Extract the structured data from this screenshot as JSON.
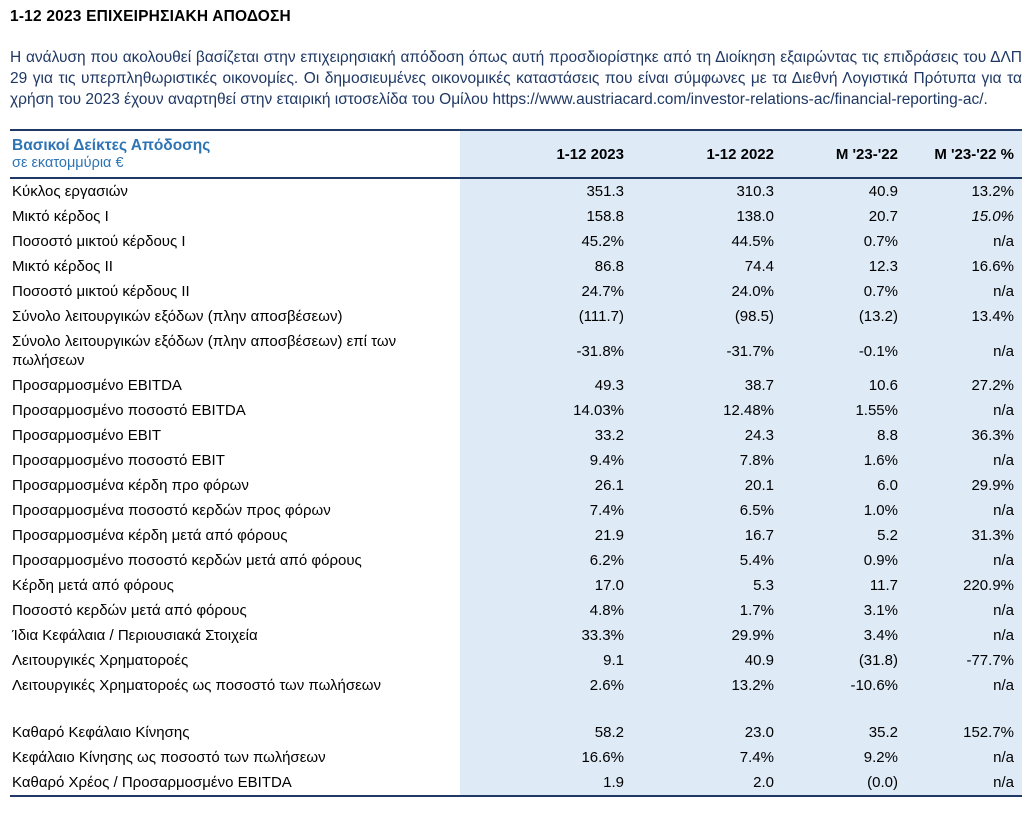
{
  "page": {
    "title": "1-12 2023 ΕΠΙΧΕΙΡΗΣΙΑΚΗ ΑΠΟΔΟΣΗ",
    "intro_text": "Η ανάλυση που ακολουθεί βασίζεται στην επιχειρησιακή απόδοση όπως αυτή προσδιορίστηκε από τη Διοίκηση εξαιρώντας τις επιδράσεις του ΔΛΠ 29 για τις υπερπληθωριστικές οικονομίες. Οι δημοσιευμένες οικονομικές καταστάσεις που είναι σύμφωνες με τα Διεθνή Λογιστικά Πρότυπα για τα χρήση του 2023 έχουν αναρτηθεί στην εταιρική ιστοσελίδα του Ομίλου ",
    "link_text": "https://www.austriacard.com/investor-relations-ac/financial-reporting-ac/",
    "after_link": "."
  },
  "colors": {
    "accent_blue": "#2E74B5",
    "body_navy": "#1F3864",
    "table_shading": "#DEEAF6",
    "table_border": "#1F3864"
  },
  "table": {
    "title": "Βασικοί Δείκτες Απόδοσης",
    "subtitle": "σε εκατομμύρια €",
    "columns": [
      "1-12 2023",
      "1-12 2022",
      "Μ '23-'22",
      "Μ '23-'22 %"
    ],
    "rows": [
      {
        "label": "Κύκλος εργασιών",
        "values": [
          "351.3",
          "310.3",
          "40.9",
          "13.2%"
        ]
      },
      {
        "label": "Μικτό κέρδος Ι",
        "values": [
          "158.8",
          "138.0",
          "20.7",
          "15.0%"
        ],
        "italics": [
          false,
          false,
          false,
          true
        ]
      },
      {
        "label": "Ποσοστό μικτού κέρδους Ι",
        "values": [
          "45.2%",
          "44.5%",
          "0.7%",
          "n/a"
        ]
      },
      {
        "label": "Μικτό κέρδος ΙΙ",
        "values": [
          "86.8",
          "74.4",
          "12.3",
          "16.6%"
        ]
      },
      {
        "label": "Ποσοστό μικτού κέρδους ΙΙ",
        "values": [
          "24.7%",
          "24.0%",
          "0.7%",
          "n/a"
        ]
      },
      {
        "label": "Σύνολο λειτουργικών εξόδων (πλην αποσβέσεων)",
        "values": [
          "(111.7)",
          "(98.5)",
          "(13.2)",
          "13.4%"
        ]
      },
      {
        "label": "Σύνολο λειτουργικών εξόδων (πλην αποσβέσεων) επί των πωλήσεων",
        "values": [
          "-31.8%",
          "-31.7%",
          "-0.1%",
          "n/a"
        ]
      },
      {
        "label": "Προσαρμοσμένο EBITDA",
        "values": [
          "49.3",
          "38.7",
          "10.6",
          "27.2%"
        ]
      },
      {
        "label": "Προσαρμοσμένο ποσοστό EBITDA",
        "values": [
          "14.03%",
          "12.48%",
          "1.55%",
          "n/a"
        ]
      },
      {
        "label": "Προσαρμοσμένο EBIT",
        "values": [
          "33.2",
          "24.3",
          "8.8",
          "36.3%"
        ]
      },
      {
        "label": "Προσαρμοσμένο ποσοστό EBIT",
        "values": [
          "9.4%",
          "7.8%",
          "1.6%",
          "n/a"
        ]
      },
      {
        "label": "Προσαρμοσμένα κέρδη προ φόρων",
        "values": [
          "26.1",
          "20.1",
          "6.0",
          "29.9%"
        ]
      },
      {
        "label": "Προσαρμοσμένα ποσοστό κερδών προς φόρων",
        "values": [
          "7.4%",
          "6.5%",
          "1.0%",
          "n/a"
        ]
      },
      {
        "label": "Προσαρμοσμένα κέρδη μετά από φόρους",
        "values": [
          "21.9",
          "16.7",
          "5.2",
          "31.3%"
        ]
      },
      {
        "label": "Προσαρμοσμένο ποσοστό κερδών μετά από φόρους",
        "values": [
          "6.2%",
          "5.4%",
          "0.9%",
          "n/a"
        ]
      },
      {
        "label": "Κέρδη μετά από φόρους",
        "values": [
          "17.0",
          "5.3",
          "11.7",
          "220.9%"
        ]
      },
      {
        "label": "Ποσοστό κερδών μετά από φόρους",
        "values": [
          "4.8%",
          "1.7%",
          "3.1%",
          "n/a"
        ]
      },
      {
        "label": "Ίδια Κεφάλαια / Περιουσιακά Στοιχεία",
        "values": [
          "33.3%",
          "29.9%",
          "3.4%",
          "n/a"
        ]
      },
      {
        "label": "Λειτουργικές Χρηματοροές",
        "values": [
          "9.1",
          "40.9",
          "(31.8)",
          "-77.7%"
        ]
      },
      {
        "label": "Λειτουργικές Χρηματοροές ως ποσοστό των πωλήσεων",
        "values": [
          "2.6%",
          "13.2%",
          "-10.6%",
          "n/a"
        ]
      },
      {
        "label": "",
        "values": [
          "",
          "",
          "",
          ""
        ]
      },
      {
        "label": "Καθαρό Κεφάλαιο Κίνησης",
        "values": [
          "58.2",
          "23.0",
          "35.2",
          "152.7%"
        ]
      },
      {
        "label": "Κεφάλαιο Κίνησης ως ποσοστό των πωλήσεων",
        "values": [
          "16.6%",
          "7.4%",
          "9.2%",
          "n/a"
        ]
      },
      {
        "label": "Καθαρό Χρέος / Προσαρμοσμένο EBITDA",
        "values": [
          "1.9",
          "2.0",
          "(0.0)",
          "n/a"
        ]
      }
    ]
  }
}
